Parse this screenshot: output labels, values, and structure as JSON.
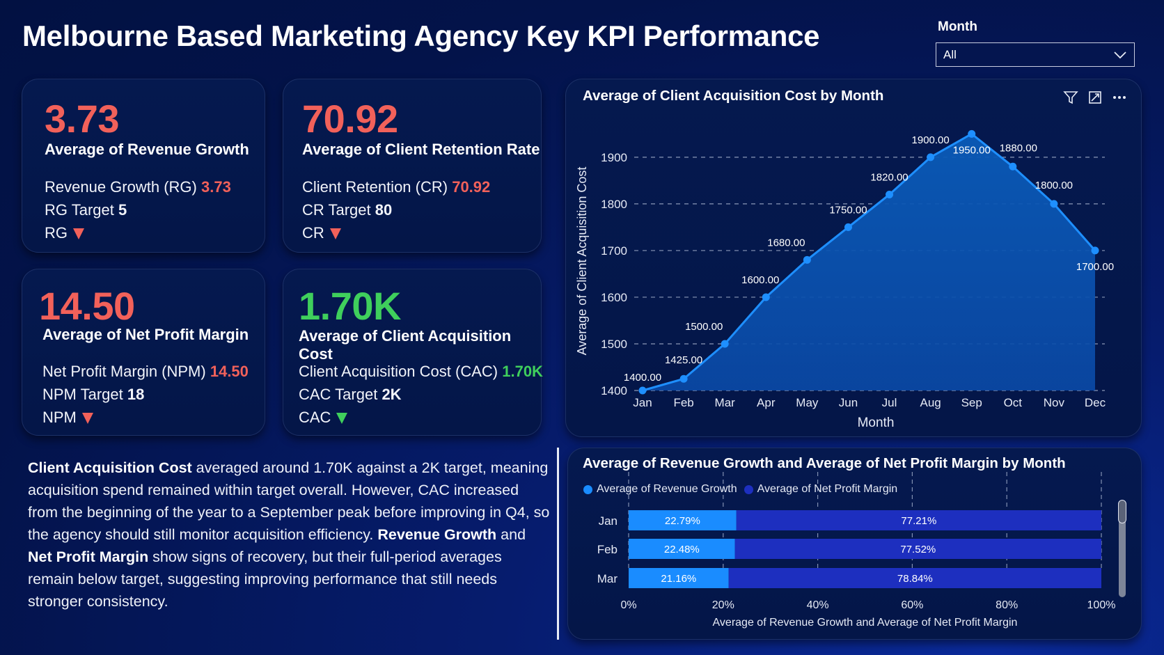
{
  "header": {
    "title": "Melbourne Based Marketing Agency Key KPI Performance"
  },
  "slicer": {
    "label": "Month",
    "value": "All",
    "icon": "chevron-down-icon"
  },
  "kpis": [
    {
      "value": "3.73",
      "value_color": "#f2615a",
      "label": "Average of Revenue Growth",
      "line1_text": "Revenue Growth (RG)",
      "line1_value": "3.73",
      "line2_text": "RG Target",
      "line2_value": "5",
      "line3_text": "RG",
      "status": "down",
      "status_color": "#f2615a"
    },
    {
      "value": "70.92",
      "value_color": "#f2615a",
      "label": "Average of Client Retention Rate",
      "line1_text": "Client Retention (CR)",
      "line1_value": "70.92",
      "line2_text": "CR Target",
      "line2_value": "80",
      "line3_text": "CR",
      "status": "down",
      "status_color": "#f2615a"
    },
    {
      "value": "14.50",
      "value_color": "#f2615a",
      "label": "Average of Net Profit Margin",
      "line1_text": "Net Profit Margin (NPM)",
      "line1_value": "14.50",
      "line2_text": "NPM Target",
      "line2_value": "18",
      "line3_text": "NPM",
      "status": "down",
      "status_color": "#f2615a"
    },
    {
      "value": "1.70K",
      "value_color": "#3fcf5c",
      "label": "Average of Client Acquisition Cost",
      "line1_text": "Client Acquisition Cost (CAC)",
      "line1_value": "1.70K",
      "line2_text": "CAC Target",
      "line2_value": "2K",
      "line3_text": "CAC",
      "status": "down",
      "status_color": "#3fcf5c"
    }
  ],
  "narrative": {
    "b1": "Client Acquisition Cost",
    "t1": " averaged around 1.70K against a 2K target, meaning acquisition spend remained within target overall. However, CAC increased from the beginning of the year to a September peak before improving in Q4, so the agency should still monitor acquisition efficiency. ",
    "b2": "Revenue Growth",
    "t2": " and ",
    "b3": "Net Profit Margin",
    "t3": " show signs of recovery, but their full-period averages remain below target, suggesting improving performance that still needs stronger consistency."
  },
  "visual_icons": {
    "filter": "filter-icon",
    "focus": "focus-mode-icon",
    "more": "more-options-icon"
  },
  "chart_data": [
    {
      "type": "area",
      "title": "Average of Client Acquisition Cost by Month",
      "xlabel": "Month",
      "ylabel": "Average of Client Acquisition Cost",
      "categories": [
        "Jan",
        "Feb",
        "Mar",
        "Apr",
        "May",
        "Jun",
        "Jul",
        "Aug",
        "Sep",
        "Oct",
        "Nov",
        "Dec"
      ],
      "values": [
        1400,
        1425,
        1500,
        1600,
        1680,
        1750,
        1820,
        1900,
        1950,
        1880,
        1800,
        1700
      ],
      "data_labels": [
        "1400.00",
        "1425.00",
        "1500.00",
        "1600.00",
        "1680.00",
        "1750.00",
        "1820.00",
        "1900.00",
        "1950.00",
        "1880.00",
        "1800.00",
        "1700.00"
      ],
      "yticks": [
        1400,
        1500,
        1600,
        1700,
        1800,
        1900
      ],
      "ylim": [
        1400,
        1950
      ],
      "grid": true,
      "color": "#1e8fff"
    },
    {
      "type": "bar",
      "stacked": "100%",
      "orientation": "horizontal",
      "title": "Average of Revenue Growth and Average of Net Profit Margin by Month",
      "xlabel": "Average of Revenue Growth and Average of Net Profit Margin",
      "categories": [
        "Jan",
        "Feb",
        "Mar"
      ],
      "series": [
        {
          "name": "Average of Revenue Growth",
          "values": [
            22.79,
            22.48,
            21.16
          ],
          "labels": [
            "22.79%",
            "22.48%",
            "21.16%"
          ],
          "color": "#1a8cff"
        },
        {
          "name": "Average of Net Profit Margin",
          "values": [
            77.21,
            77.52,
            78.84
          ],
          "labels": [
            "77.21%",
            "77.52%",
            "78.84%"
          ],
          "color": "#1d2fbf"
        }
      ],
      "xticks": [
        "0%",
        "20%",
        "40%",
        "60%",
        "80%",
        "100%"
      ],
      "xlim": [
        0,
        100
      ],
      "legend": "top-left",
      "grid": true
    }
  ]
}
